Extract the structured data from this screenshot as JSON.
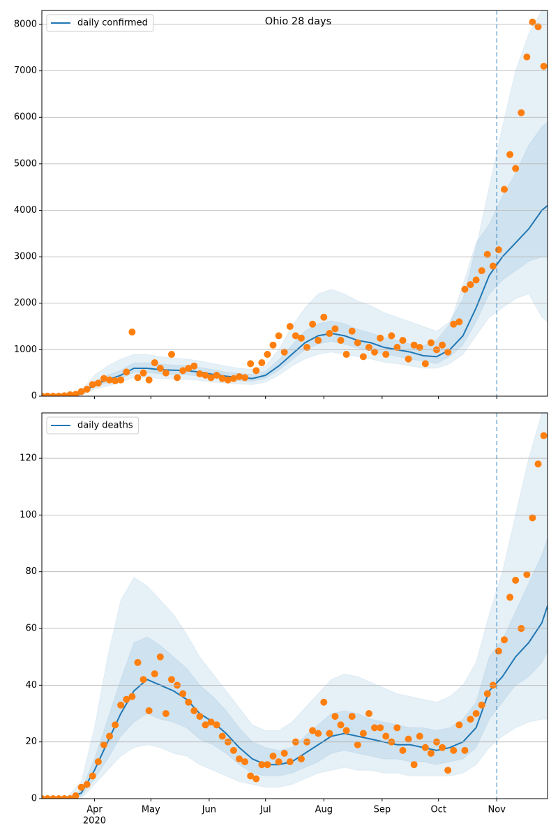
{
  "chart_data": [
    {
      "type": "line",
      "title": "Ohio 28 days",
      "xlim": [
        0,
        269
      ],
      "xticks": [
        28,
        58,
        89,
        119,
        150,
        181,
        211,
        242
      ],
      "ylim": [
        0,
        8300
      ],
      "yticks": [
        0,
        1000,
        2000,
        3000,
        4000,
        5000,
        6000,
        7000,
        8000
      ],
      "grid": "y",
      "legend": "upper left",
      "vline": 242,
      "vline_color": "#1f77b4",
      "series": [
        {
          "name": "daily confirmed",
          "color": "#1f77b4",
          "x": [
            0,
            7,
            14,
            21,
            28,
            35,
            42,
            49,
            56,
            63,
            70,
            77,
            84,
            91,
            98,
            105,
            112,
            119,
            126,
            133,
            140,
            147,
            154,
            161,
            168,
            175,
            182,
            189,
            196,
            203,
            210,
            217,
            224,
            231,
            238,
            245,
            252,
            259,
            266,
            269
          ],
          "values": [
            0,
            0,
            10,
            50,
            250,
            350,
            450,
            600,
            600,
            570,
            560,
            550,
            520,
            470,
            430,
            400,
            380,
            450,
            650,
            900,
            1150,
            1300,
            1350,
            1300,
            1200,
            1150,
            1050,
            1000,
            950,
            870,
            850,
            1000,
            1300,
            1900,
            2600,
            3000,
            3300,
            3600,
            4000,
            4100
          ],
          "bands": [
            {
              "lower": [
                0,
                0,
                0,
                20,
                150,
                220,
                300,
                400,
                400,
                380,
                370,
                360,
                340,
                300,
                280,
                260,
                250,
                300,
                450,
                650,
                800,
                900,
                950,
                900,
                850,
                800,
                730,
                700,
                650,
                600,
                600,
                700,
                900,
                1300,
                1700,
                1900,
                2100,
                2200,
                1700,
                1600
              ],
              "upper": [
                0,
                0,
                30,
                120,
                450,
                650,
                800,
                900,
                900,
                850,
                820,
                800,
                760,
                700,
                650,
                600,
                580,
                650,
                1000,
                1500,
                1900,
                2200,
                2300,
                2200,
                2050,
                1950,
                1800,
                1700,
                1600,
                1500,
                1400,
                1600,
                2100,
                3200,
                4500,
                5800,
                7000,
                7800,
                8300,
                8300
              ]
            },
            {
              "lower": [
                0,
                0,
                5,
                35,
                200,
                290,
                380,
                510,
                510,
                480,
                470,
                460,
                430,
                390,
                360,
                330,
                320,
                380,
                560,
                780,
                1000,
                1120,
                1180,
                1120,
                1040,
                980,
                900,
                860,
                790,
                760,
                700,
                850,
                1100,
                1600,
                2200,
                2500,
                2700,
                2900,
                3000,
                3000
              ],
              "upper": [
                0,
                0,
                15,
                70,
                320,
                450,
                560,
                720,
                720,
                690,
                670,
                660,
                620,
                570,
                520,
                490,
                470,
                540,
                780,
                1100,
                1400,
                1560,
                1620,
                1560,
                1440,
                1360,
                1260,
                1200,
                1120,
                1080,
                1200,
                1550,
                2400,
                3300,
                3700,
                4300,
                4800,
                5400,
                5800,
                5900
              ]
            }
          ]
        },
        {
          "type": "scatter",
          "color": "#ff7f0e",
          "x": [
            0,
            3,
            6,
            9,
            12,
            15,
            18,
            21,
            24,
            27,
            30,
            33,
            36,
            39,
            42,
            45,
            48,
            51,
            54,
            57,
            60,
            63,
            66,
            69,
            72,
            75,
            78,
            81,
            84,
            87,
            90,
            93,
            96,
            99,
            102,
            105,
            108,
            111,
            114,
            117,
            120,
            123,
            126,
            129,
            132,
            135,
            138,
            141,
            144,
            147,
            150,
            153,
            156,
            159,
            162,
            165,
            168,
            171,
            174,
            177,
            180,
            183,
            186,
            189,
            192,
            195,
            198,
            201,
            204,
            207,
            210,
            213,
            216,
            219,
            222,
            225,
            228,
            231,
            234,
            237,
            240,
            243,
            246,
            249,
            252,
            255,
            258,
            261,
            264,
            267
          ],
          "values": [
            0,
            0,
            0,
            0,
            10,
            30,
            40,
            100,
            150,
            250,
            280,
            380,
            350,
            330,
            350,
            520,
            1380,
            400,
            500,
            350,
            720,
            600,
            500,
            900,
            400,
            550,
            600,
            650,
            480,
            450,
            400,
            450,
            380,
            350,
            380,
            420,
            400,
            700,
            550,
            720,
            900,
            1100,
            1300,
            950,
            1500,
            1300,
            1250,
            1050,
            1550,
            1200,
            1700,
            1350,
            1450,
            1200,
            900,
            1400,
            1150,
            850,
            1050,
            950,
            1250,
            900,
            1300,
            1050,
            1200,
            800,
            1100,
            1050,
            700,
            1150,
            1000,
            1100,
            950,
            1550,
            1600,
            2300,
            2400,
            2500,
            2700,
            3050,
            2800,
            3150,
            4450,
            5200,
            4900,
            6100,
            7300,
            8050,
            7950,
            7100
          ]
        }
      ]
    },
    {
      "type": "line",
      "xlim": [
        0,
        269
      ],
      "xticks": [
        {
          "value": 28,
          "label": "Apr"
        },
        {
          "value": 58,
          "label": "May"
        },
        {
          "value": 89,
          "label": "Jun"
        },
        {
          "value": 119,
          "label": "Jul"
        },
        {
          "value": 150,
          "label": "Aug"
        },
        {
          "value": 181,
          "label": "Sep"
        },
        {
          "value": 211,
          "label": "Oct"
        },
        {
          "value": 242,
          "label": "Nov"
        }
      ],
      "year_label": "2020",
      "ylim": [
        0,
        136
      ],
      "yticks": [
        0,
        20,
        40,
        60,
        80,
        100,
        120
      ],
      "grid": "y",
      "legend": "upper left",
      "vline": 242,
      "vline_color": "#1f77b4",
      "series": [
        {
          "name": "daily deaths",
          "color": "#1f77b4",
          "x": [
            0,
            7,
            14,
            21,
            28,
            35,
            42,
            49,
            56,
            63,
            70,
            77,
            84,
            91,
            98,
            105,
            112,
            119,
            126,
            133,
            140,
            147,
            154,
            161,
            168,
            175,
            182,
            189,
            196,
            203,
            210,
            217,
            224,
            231,
            238,
            245,
            252,
            259,
            266,
            269
          ],
          "values": [
            0,
            0,
            0,
            2,
            10,
            20,
            30,
            38,
            42,
            40,
            38,
            35,
            30,
            27,
            23,
            18,
            14,
            12,
            12,
            13,
            16,
            19,
            22,
            23,
            22,
            21,
            20,
            19,
            19,
            18,
            17,
            18,
            20,
            25,
            38,
            43,
            50,
            55,
            62,
            68
          ],
          "bands": [
            {
              "lower": [
                0,
                0,
                0,
                0,
                5,
                10,
                15,
                18,
                19,
                18,
                16,
                15,
                12,
                10,
                8,
                6,
                5,
                4,
                4,
                5,
                7,
                9,
                10,
                11,
                10,
                10,
                9,
                9,
                8,
                8,
                8,
                8,
                9,
                12,
                18,
                22,
                25,
                27,
                28,
                28
              ],
              "upper": [
                0,
                0,
                1,
                6,
                25,
                50,
                70,
                78,
                75,
                70,
                65,
                58,
                50,
                44,
                38,
                32,
                26,
                24,
                24,
                27,
                32,
                37,
                42,
                44,
                43,
                41,
                39,
                37,
                36,
                35,
                34,
                36,
                40,
                48,
                65,
                80,
                100,
                120,
                136,
                136
              ]
            },
            {
              "lower": [
                0,
                0,
                0,
                1,
                7,
                14,
                22,
                27,
                30,
                28,
                27,
                25,
                21,
                19,
                16,
                12,
                9,
                8,
                8,
                9,
                11,
                13,
                16,
                17,
                16,
                15,
                14,
                14,
                13,
                13,
                12,
                13,
                14,
                18,
                28,
                34,
                40,
                43,
                48,
                52
              ],
              "upper": [
                0,
                0,
                0,
                3,
                14,
                28,
                42,
                55,
                57,
                54,
                50,
                46,
                40,
                36,
                31,
                25,
                20,
                18,
                17,
                18,
                22,
                26,
                30,
                31,
                30,
                28,
                27,
                26,
                25,
                25,
                24,
                25,
                28,
                34,
                50,
                56,
                66,
                76,
                86,
                92
              ]
            }
          ]
        },
        {
          "type": "scatter",
          "color": "#ff7f0e",
          "x": [
            0,
            3,
            6,
            9,
            12,
            15,
            18,
            21,
            24,
            27,
            30,
            33,
            36,
            39,
            42,
            45,
            48,
            51,
            54,
            57,
            60,
            63,
            66,
            69,
            72,
            75,
            78,
            81,
            84,
            87,
            90,
            93,
            96,
            99,
            102,
            105,
            108,
            111,
            114,
            117,
            120,
            123,
            126,
            129,
            132,
            135,
            138,
            141,
            144,
            147,
            150,
            153,
            156,
            159,
            162,
            165,
            168,
            171,
            174,
            177,
            180,
            183,
            186,
            189,
            192,
            195,
            198,
            201,
            204,
            207,
            210,
            213,
            216,
            219,
            222,
            225,
            228,
            231,
            234,
            237,
            240,
            243,
            246,
            249,
            252,
            255,
            258,
            261,
            264,
            267
          ],
          "values": [
            0,
            0,
            0,
            0,
            0,
            0,
            1,
            4,
            5,
            8,
            13,
            19,
            22,
            26,
            33,
            35,
            36,
            48,
            42,
            31,
            44,
            50,
            30,
            42,
            40,
            37,
            34,
            31,
            29,
            26,
            27,
            26,
            22,
            20,
            17,
            14,
            13,
            8,
            7,
            12,
            12,
            15,
            13,
            16,
            13,
            20,
            14,
            20,
            24,
            23,
            34,
            23,
            29,
            26,
            24,
            29,
            19,
            23,
            30,
            25,
            25,
            22,
            20,
            25,
            17,
            21,
            12,
            22,
            18,
            16,
            20,
            18,
            10,
            17,
            26,
            17,
            28,
            30,
            33,
            37,
            40,
            52,
            56,
            71,
            77,
            60,
            79,
            99,
            118,
            128
          ]
        }
      ]
    }
  ]
}
